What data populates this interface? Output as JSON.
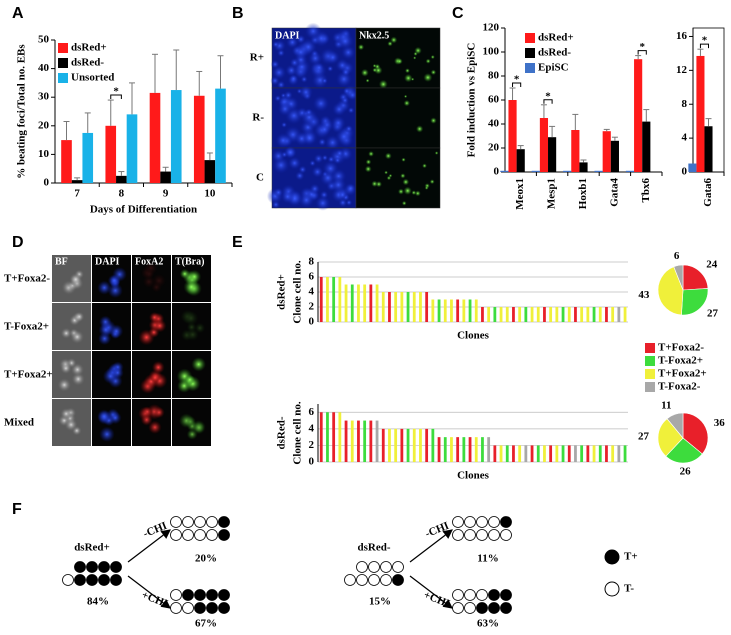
{
  "panel_labels": [
    "A",
    "B",
    "C",
    "D",
    "E",
    "F"
  ],
  "chart_data": [
    {
      "type": "bar",
      "ylabel": "% beating foci/Total no. EBs",
      "xlabel": "Days of Differentiation",
      "categories": [
        "7",
        "8",
        "9",
        "10"
      ],
      "series": [
        {
          "name": "dsRed+",
          "color": "#ff1a1a",
          "values": [
            15,
            20,
            31.5,
            30.5
          ],
          "errors": [
            6.5,
            9,
            13.5,
            8.5
          ]
        },
        {
          "name": "dsRed-",
          "color": "#000000",
          "values": [
            1,
            2.5,
            4,
            8
          ],
          "errors": [
            0.8,
            1.5,
            1.5,
            2.5
          ]
        },
        {
          "name": "Unsorted",
          "color": "#19b2e8",
          "values": [
            17.5,
            24,
            32.5,
            33
          ],
          "errors": [
            7,
            11,
            14,
            11.5
          ]
        }
      ],
      "ylim": [
        0,
        50
      ],
      "yticks": [
        0,
        10,
        20,
        30,
        40,
        50
      ],
      "annotations": [
        {
          "text": "*",
          "category": 1
        }
      ]
    },
    {
      "type": "bar",
      "ylabel": "Fold induction vs EpiSC",
      "categories": [
        "Meox1",
        "Mesp1",
        "Hoxb1",
        "Gata4",
        "Tbx6"
      ],
      "series": [
        {
          "name": "dsRed+",
          "color": "#ff1a1a",
          "values": [
            60,
            45,
            35,
            34,
            94
          ],
          "errors": [
            10,
            11,
            13,
            1.5,
            3
          ]
        },
        {
          "name": "dsRed-",
          "color": "#000000",
          "values": [
            19,
            29,
            8,
            26,
            42
          ],
          "errors": [
            3,
            9,
            2,
            3,
            10
          ]
        },
        {
          "name": "EpiSC",
          "color": "#3f72c8",
          "values": [
            1,
            1,
            1,
            1,
            1
          ]
        }
      ],
      "ylim": [
        0,
        120
      ],
      "yticks": [
        0,
        20,
        40,
        60,
        80,
        100,
        120
      ],
      "annotations": [
        {
          "text": "*",
          "category": 0
        },
        {
          "text": "*",
          "category": 1
        },
        {
          "text": "*",
          "category": 4
        }
      ]
    },
    {
      "type": "bar",
      "categories": [
        "Gata6"
      ],
      "series": [
        {
          "color": "#ff1a1a",
          "values": [
            13.7
          ],
          "errors": [
            0.8
          ]
        },
        {
          "color": "#000000",
          "values": [
            5.4
          ],
          "errors": [
            0.9
          ]
        },
        {
          "color": "#3f72c8",
          "values": [
            1
          ]
        }
      ],
      "ylim": [
        0,
        17
      ],
      "yticks": [
        0,
        4,
        8,
        12,
        16
      ],
      "annotations": [
        {
          "text": "*",
          "category": 0
        }
      ]
    },
    {
      "type": "clone",
      "side_label": "dsRed+",
      "side_color": "#ff1a1a",
      "ylabel": "Clone cell no.",
      "xlabel": "Clones",
      "ylim": [
        0,
        8
      ],
      "yticks": [
        0,
        2,
        4,
        6,
        8
      ],
      "class_colors": [
        "#e8202a",
        "#3ddc3d",
        "#f0f03a",
        "#a8a8a8"
      ],
      "values": [
        6,
        6,
        6,
        6,
        5,
        5,
        5,
        5,
        5,
        5,
        4,
        4,
        4,
        4,
        4,
        4,
        4,
        4,
        3,
        3,
        3,
        3,
        3,
        3,
        3,
        3,
        2,
        2,
        2,
        2,
        2,
        2,
        2,
        2,
        2,
        2,
        2,
        2,
        2,
        2,
        2,
        2,
        2,
        2,
        2,
        2,
        2,
        2,
        2,
        2
      ],
      "classes": [
        0,
        2,
        1,
        2,
        2,
        1,
        2,
        2,
        0,
        2,
        2,
        0,
        2,
        2,
        1,
        2,
        2,
        0,
        2,
        1,
        2,
        2,
        0,
        2,
        1,
        2,
        0,
        2,
        1,
        2,
        2,
        0,
        2,
        1,
        2,
        2,
        0,
        2,
        2,
        1,
        2,
        0,
        2,
        2,
        1,
        2,
        0,
        2,
        3,
        2
      ]
    },
    {
      "type": "clone",
      "side_label": "dsRed-",
      "side_color": "#000000",
      "ylabel": "Clone cell no.",
      "xlabel": "Clones",
      "ylim": [
        0,
        7
      ],
      "yticks": [
        0,
        2,
        4,
        6
      ],
      "class_colors": [
        "#e8202a",
        "#3ddc3d",
        "#f0f03a",
        "#a8a8a8"
      ],
      "values": [
        6,
        6,
        6,
        6,
        5,
        5,
        5,
        5,
        5,
        5,
        4,
        4,
        4,
        4,
        4,
        4,
        4,
        4,
        4,
        3,
        3,
        3,
        3,
        3,
        3,
        3,
        3,
        3,
        2,
        2,
        2,
        2,
        2,
        2,
        2,
        2,
        2,
        2,
        2,
        2,
        2,
        2,
        2,
        2,
        2,
        2,
        2,
        2,
        2,
        2
      ],
      "classes": [
        0,
        1,
        0,
        2,
        0,
        2,
        0,
        1,
        0,
        3,
        0,
        2,
        2,
        0,
        1,
        2,
        2,
        0,
        1,
        0,
        1,
        2,
        0,
        1,
        0,
        2,
        1,
        3,
        0,
        2,
        1,
        0,
        2,
        3,
        0,
        1,
        2,
        0,
        2,
        1,
        0,
        3,
        1,
        0,
        2,
        1,
        0,
        2,
        3,
        1
      ]
    },
    {
      "type": "pie",
      "categories": [
        "T+Foxa2-",
        "T-Foxa2+",
        "T+Foxa2+",
        "T-Foxa2-"
      ],
      "colors": [
        "#e8202a",
        "#3ddc3d",
        "#f0f03a",
        "#a8a8a8"
      ],
      "values": [
        24,
        27,
        43,
        6
      ]
    },
    {
      "type": "pie",
      "colors": [
        "#e8202a",
        "#3ddc3d",
        "#f0f03a",
        "#a8a8a8"
      ],
      "values": [
        36,
        26,
        27,
        11
      ]
    }
  ],
  "panel_b": {
    "columns": [
      "DAPI",
      "Nkx2.5"
    ],
    "rows": [
      "R+",
      "R-",
      "C"
    ]
  },
  "panel_d": {
    "columns": [
      "BF",
      "DAPI",
      "FoxA2",
      "T(Bra)"
    ],
    "rows": [
      "T+Foxa2-",
      "T-Foxa2+",
      "T+Foxa2+",
      "Mixed"
    ]
  },
  "panel_f": {
    "groups": [
      {
        "name": "dsRed+",
        "percent": "84%",
        "branches": [
          {
            "condition": "-CHI",
            "percent": "20%"
          },
          {
            "condition": "+CHI",
            "percent": "67%"
          }
        ]
      },
      {
        "name": "dsRed-",
        "percent": "15%",
        "branches": [
          {
            "condition": "-CHI",
            "percent": "11%"
          },
          {
            "condition": "+CHI",
            "percent": "63%"
          }
        ]
      }
    ],
    "legend": [
      "T+",
      "T-"
    ]
  }
}
